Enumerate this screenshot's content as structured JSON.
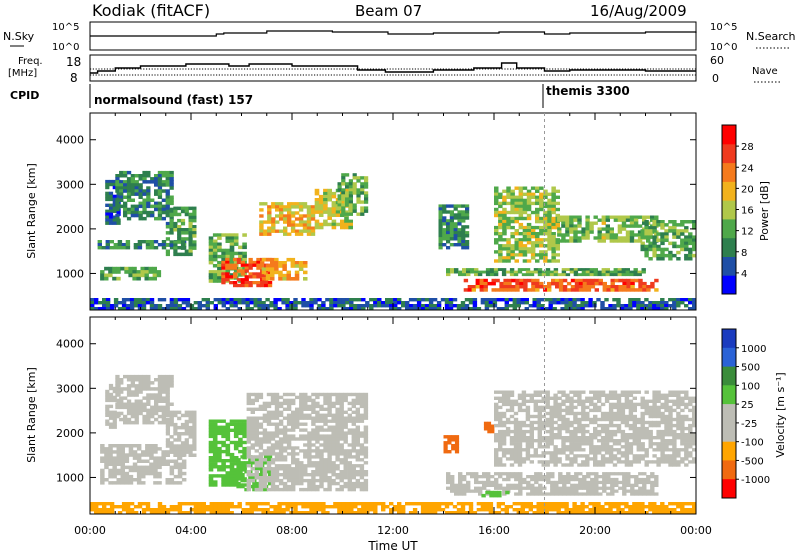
{
  "header": {
    "station": "Kodiak (fitACF)",
    "beam": "Beam 07",
    "date": "16/Aug/2009"
  },
  "side_labels": {
    "nsky": "N.Sky",
    "nsky_low": "10^0",
    "nsky_high": "10^5",
    "freq": "Freq.",
    "freq_unit": "[MHz]",
    "freq_low": "8",
    "freq_high": "18",
    "cpid": "CPID",
    "nsearch": "N.Search",
    "nsearch_low": "10^0",
    "nsearch_high": "10^5",
    "nave": "Nave",
    "nave_low": "0",
    "nave_high": "60"
  },
  "modes": [
    {
      "label": "normalsound (fast) 157",
      "start_hour": 0
    },
    {
      "label": "themis 3300",
      "start_hour": 18.0
    }
  ],
  "colors": {
    "power": [
      "#0000ff",
      "#1f4fa6",
      "#2e7f4e",
      "#4fa84a",
      "#b0c84a",
      "#f2b21c",
      "#f57a1c",
      "#ef3a1e",
      "#ff0000"
    ],
    "velocity": [
      "#1a3bbf",
      "#2a62d6",
      "#3a8c3a",
      "#55c23a",
      "#bdbdb5",
      "#bdbdb5",
      "#ffa500",
      "#f06a10",
      "#ff0000"
    ]
  },
  "chart_data": [
    {
      "type": "heatmap",
      "name": "power",
      "xlabel": "Time UT",
      "ylabel": "Slant Range [km]",
      "xlim": [
        0,
        24
      ],
      "ylim": [
        180,
        4600
      ],
      "x_ticks": [
        "00:00",
        "04:00",
        "08:00",
        "12:00",
        "16:00",
        "20:00",
        "00:00"
      ],
      "y_ticks": [
        1000,
        2000,
        3000,
        4000
      ],
      "colorbar": {
        "label": "Power [dB]",
        "ticks": [
          4,
          8,
          12,
          16,
          20,
          24,
          28
        ],
        "range": [
          0,
          32
        ]
      },
      "cells": [
        {
          "x": [
            0.6,
            1.2
          ],
          "y": [
            2100,
            3100
          ],
          "value": 6
        },
        {
          "x": [
            1.0,
            3.3
          ],
          "y": [
            2200,
            3300
          ],
          "value": 9
        },
        {
          "x": [
            0.4,
            2.8
          ],
          "y": [
            850,
            1150
          ],
          "value": 12
        },
        {
          "x": [
            0.3,
            3.8
          ],
          "y": [
            1550,
            1750
          ],
          "value": 9
        },
        {
          "x": [
            3.0,
            4.2
          ],
          "y": [
            1400,
            2500
          ],
          "value": 11
        },
        {
          "x": [
            4.7,
            6.2
          ],
          "y": [
            800,
            1900
          ],
          "value": 13
        },
        {
          "x": [
            5.2,
            7.2
          ],
          "y": [
            700,
            1350
          ],
          "value": 26
        },
        {
          "x": [
            6.8,
            8.6
          ],
          "y": [
            850,
            1350
          ],
          "value": 20
        },
        {
          "x": [
            6.7,
            8.9
          ],
          "y": [
            1850,
            2600
          ],
          "value": 19
        },
        {
          "x": [
            8.9,
            10.4
          ],
          "y": [
            2000,
            2900
          ],
          "value": 17
        },
        {
          "x": [
            9.8,
            11.0
          ],
          "y": [
            2300,
            3250
          ],
          "value": 13
        },
        {
          "x": [
            13.8,
            15.0
          ],
          "y": [
            1550,
            2550
          ],
          "value": 10
        },
        {
          "x": [
            14.1,
            22.0
          ],
          "y": [
            950,
            1120
          ],
          "value": 12
        },
        {
          "x": [
            14.8,
            22.5
          ],
          "y": [
            600,
            880
          ],
          "value": 25
        },
        {
          "x": [
            16.0,
            18.6
          ],
          "y": [
            1250,
            2950
          ],
          "value": 15
        },
        {
          "x": [
            18.5,
            22.5
          ],
          "y": [
            1700,
            2300
          ],
          "value": 14
        },
        {
          "x": [
            21.8,
            24.0
          ],
          "y": [
            1300,
            2200
          ],
          "value": 12
        },
        {
          "x": [
            0.0,
            24.0
          ],
          "y": [
            180,
            450
          ],
          "value": 6
        }
      ]
    },
    {
      "type": "heatmap",
      "name": "velocity",
      "xlabel": "Time UT",
      "ylabel": "Slant Range [km]",
      "xlim": [
        0,
        24
      ],
      "ylim": [
        180,
        4600
      ],
      "x_ticks": [
        "00:00",
        "04:00",
        "08:00",
        "12:00",
        "16:00",
        "20:00",
        "00:00"
      ],
      "y_ticks": [
        1000,
        2000,
        3000,
        4000
      ],
      "colorbar": {
        "label": "Velocity [m s⁻¹]",
        "ticks": [
          1000,
          500,
          100,
          25,
          -25,
          -100,
          -500,
          -1000
        ],
        "range": [
          -1000,
          1000
        ]
      },
      "cells": [
        {
          "x": [
            0.6,
            1.2
          ],
          "y": [
            2100,
            3100
          ],
          "value": 0
        },
        {
          "x": [
            1.0,
            3.3
          ],
          "y": [
            2200,
            3300
          ],
          "value": 0
        },
        {
          "x": [
            0.4,
            3.8
          ],
          "y": [
            850,
            1750
          ],
          "value": 0
        },
        {
          "x": [
            3.0,
            4.2
          ],
          "y": [
            1400,
            2500
          ],
          "value": 0
        },
        {
          "x": [
            4.7,
            6.2
          ],
          "y": [
            800,
            2300
          ],
          "value": 60
        },
        {
          "x": [
            5.8,
            7.2
          ],
          "y": [
            700,
            1500
          ],
          "value": 80
        },
        {
          "x": [
            6.2,
            11.0
          ],
          "y": [
            700,
            2900
          ],
          "value": 0
        },
        {
          "x": [
            14.0,
            14.6
          ],
          "y": [
            1550,
            1950
          ],
          "value": -300
        },
        {
          "x": [
            15.6,
            16.0
          ],
          "y": [
            2000,
            2250
          ],
          "value": -300
        },
        {
          "x": [
            14.1,
            22.5
          ],
          "y": [
            600,
            1120
          ],
          "value": 0
        },
        {
          "x": [
            15.5,
            16.6
          ],
          "y": [
            560,
            700
          ],
          "value": 80
        },
        {
          "x": [
            16.0,
            24.0
          ],
          "y": [
            1250,
            2950
          ],
          "value": 0
        },
        {
          "x": [
            0.0,
            24.0
          ],
          "y": [
            180,
            450
          ],
          "value": -60
        }
      ]
    }
  ]
}
